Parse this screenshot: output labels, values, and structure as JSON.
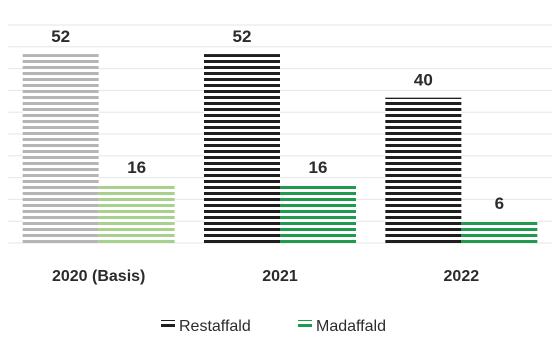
{
  "chart_data": {
    "type": "bar",
    "categories": [
      "2020 (Basis)",
      "2021",
      "2022"
    ],
    "series": [
      {
        "name": "Restaffald",
        "values": [
          52,
          52,
          40
        ],
        "colors": [
          "#b5b5b5",
          "#1f1f1f",
          "#1f1f1f"
        ]
      },
      {
        "name": "Madaffald",
        "values": [
          16,
          16,
          6
        ],
        "colors": [
          "#a9d18e",
          "#1f9a4f",
          "#1f9a4f"
        ]
      }
    ],
    "ylim": [
      0,
      60
    ],
    "grid": true,
    "legend": "bottom",
    "title": "",
    "xlabel": "",
    "ylabel": ""
  }
}
